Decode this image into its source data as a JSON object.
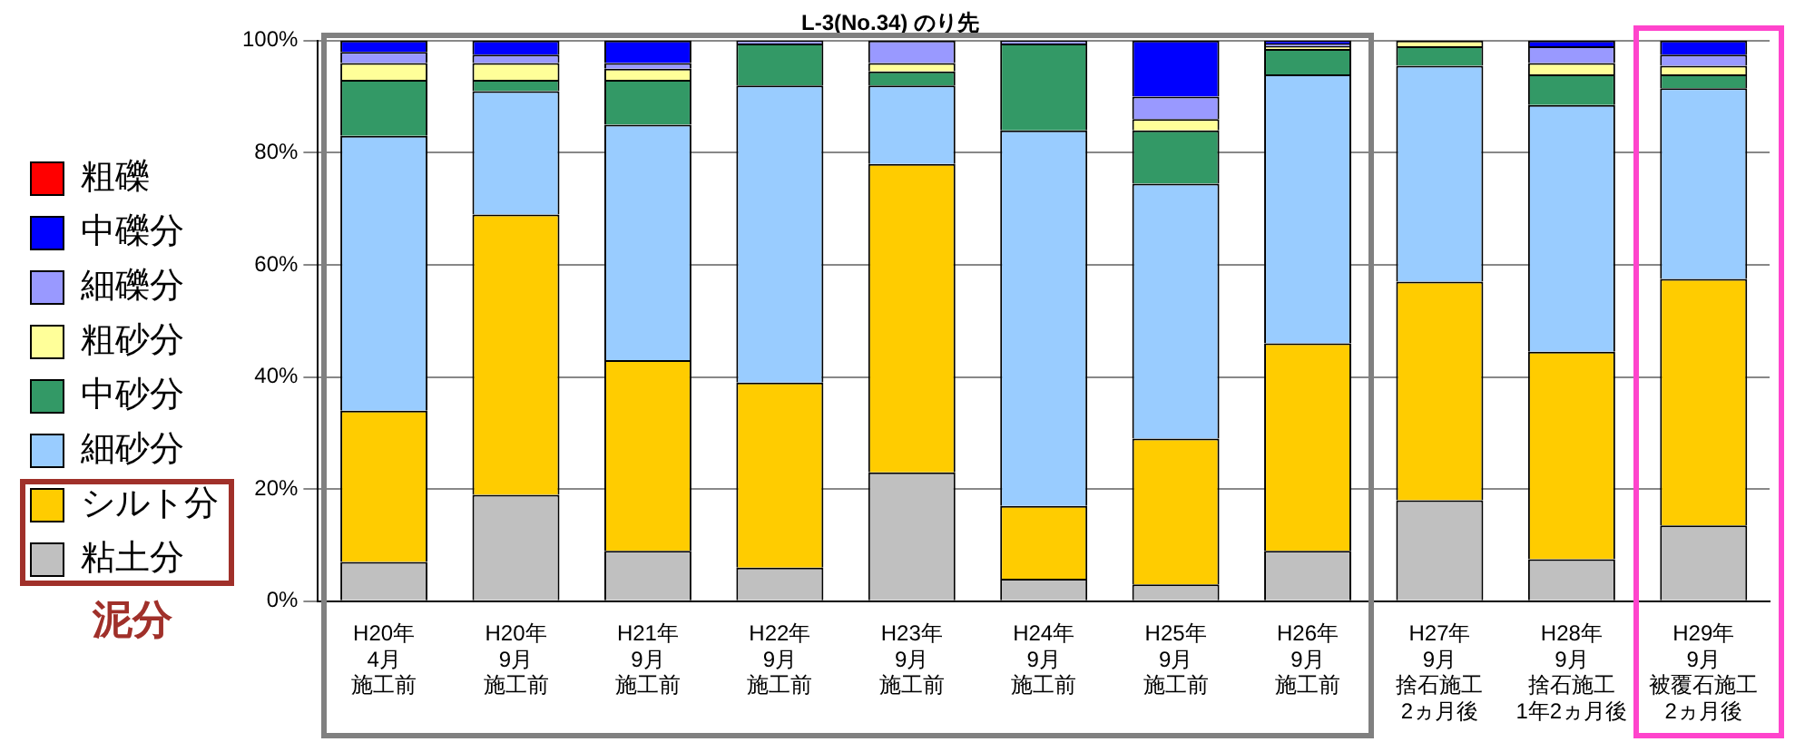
{
  "chart_data": {
    "type": "bar",
    "stacked": true,
    "title": "L-3(No.34) のり先",
    "categories": [
      "H20年4月施工前",
      "H20年9月施工前",
      "H21年9月施工前",
      "H22年9月施工前",
      "H23年9月施工前",
      "H24年9月施工前",
      "H25年9月施工前",
      "H26年9月施工前",
      "H27年9月捨石施工2ヵ月後",
      "H28年9月捨石施工1年2ヵ月後",
      "H29年9月被覆石施工2ヵ月後"
    ],
    "series": [
      {
        "name": "粘土分",
        "color": "#c0c0c0",
        "values": [
          7,
          19,
          9,
          6,
          23,
          4,
          3,
          9,
          18,
          7.5,
          13.5
        ]
      },
      {
        "name": "シルト分",
        "color": "#ffcc00",
        "values": [
          27,
          50,
          34,
          33,
          55,
          13,
          26,
          37,
          39,
          37,
          44
        ]
      },
      {
        "name": "細砂分",
        "color": "#99ccff",
        "values": [
          49,
          22,
          42,
          53,
          14,
          67,
          45.5,
          48,
          38.5,
          44,
          34
        ]
      },
      {
        "name": "中砂分",
        "color": "#339966",
        "values": [
          10,
          2,
          8,
          7.5,
          2.5,
          15.5,
          9.5,
          4.5,
          3.5,
          5.5,
          2.5
        ]
      },
      {
        "name": "粗砂分",
        "color": "#ffff99",
        "values": [
          3,
          3,
          2,
          0,
          1.5,
          0,
          2,
          0.5,
          1,
          2,
          1.5
        ]
      },
      {
        "name": "細礫分",
        "color": "#9999ff",
        "values": [
          2,
          1.5,
          1,
          0.5,
          4,
          0.5,
          4,
          0.5,
          0,
          3,
          2
        ]
      },
      {
        "name": "中礫分",
        "color": "#0000ff",
        "values": [
          2,
          2.5,
          4,
          0,
          0,
          0,
          10,
          0.5,
          0,
          1,
          2.5
        ]
      },
      {
        "name": "粗礫",
        "color": "#ff0000",
        "values": [
          0,
          0,
          0,
          0,
          0,
          0,
          0,
          0,
          0,
          0,
          0
        ]
      }
    ],
    "ylim": [
      0,
      100
    ],
    "yticks": [
      {
        "value": 0,
        "label": "0%"
      },
      {
        "value": 20,
        "label": "20%"
      },
      {
        "value": 40,
        "label": "40%"
      },
      {
        "value": 60,
        "label": "60%"
      },
      {
        "value": 80,
        "label": "80%"
      },
      {
        "value": 100,
        "label": "100%"
      }
    ],
    "grid": "y",
    "legend": "left",
    "annotations": [
      "泥分"
    ]
  }
}
